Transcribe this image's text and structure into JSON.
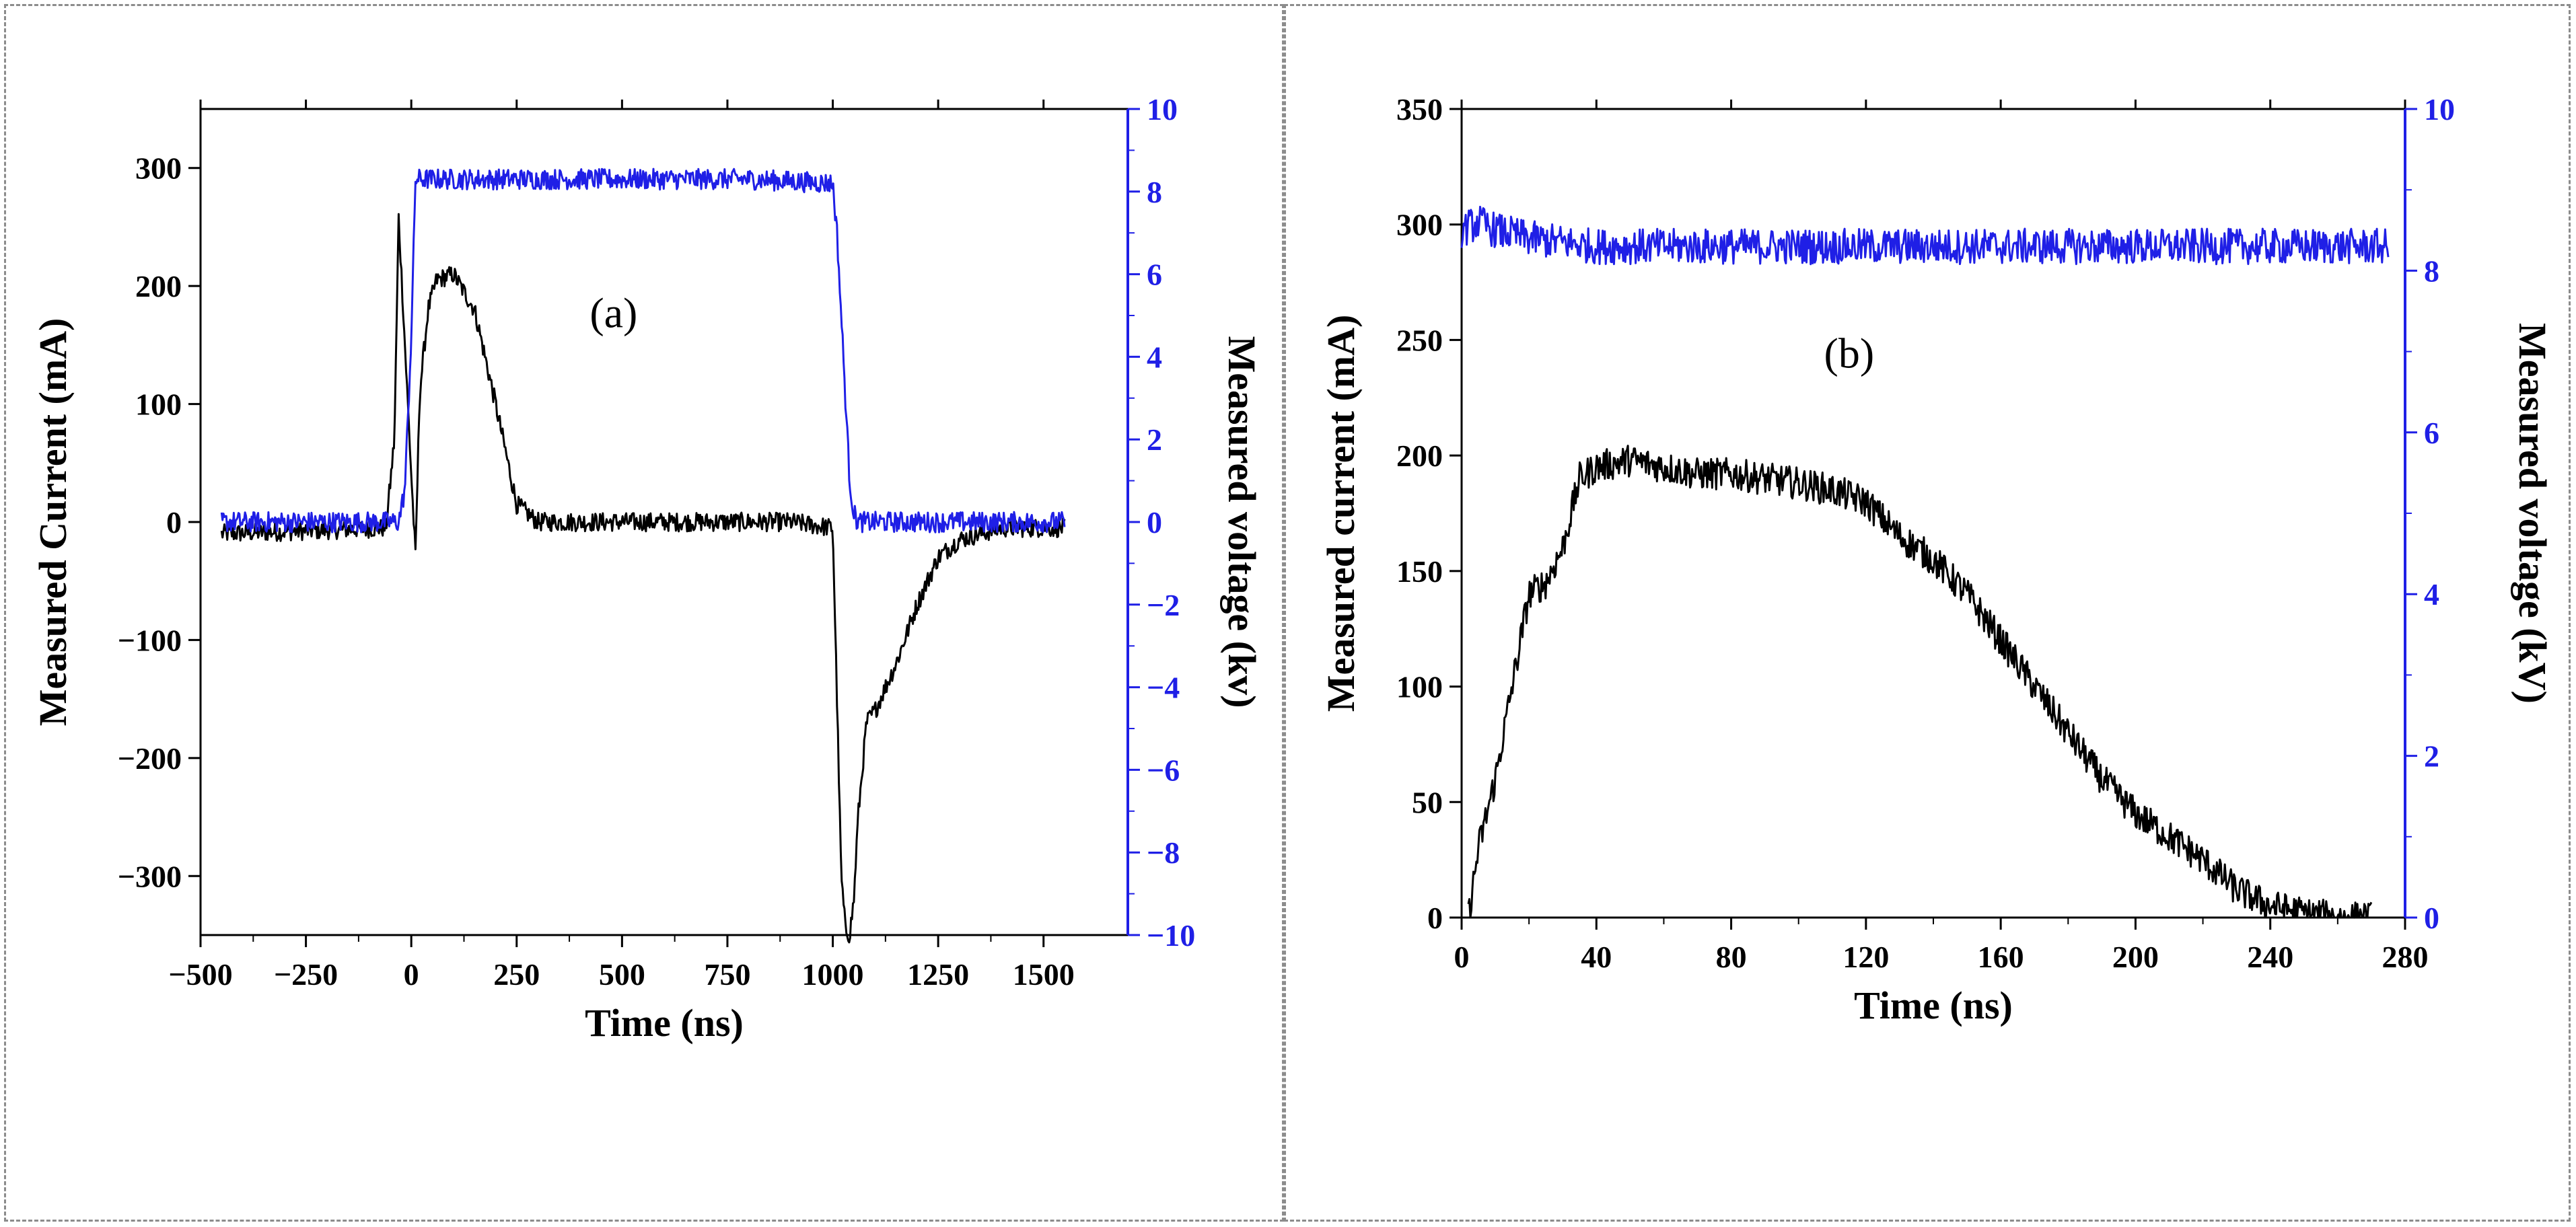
{
  "chart_data": [
    {
      "type": "line",
      "panel_label": "(a)",
      "xlabel": "Time (ns)",
      "ylabel": "Measured Current (mA)",
      "y2label": "Measured voltage (kv)",
      "xlim": [
        -500,
        1700
      ],
      "ylim": [
        -350,
        350
      ],
      "y2lim": [
        -10,
        10
      ],
      "xticks": [
        -500,
        -250,
        0,
        250,
        500,
        750,
        1000,
        1250,
        1500
      ],
      "xtick_labels": [
        "−500",
        "−250",
        "0",
        "250",
        "500",
        "750",
        "1000",
        "1250",
        "1500"
      ],
      "yticks": [
        -300,
        -200,
        -100,
        0,
        100,
        200,
        300
      ],
      "ytick_labels": [
        "−300",
        "−200",
        "−100",
        "0",
        "100",
        "200",
        "300"
      ],
      "y2ticks": [
        -10,
        -8,
        -6,
        -4,
        -2,
        0,
        2,
        4,
        6,
        8,
        10
      ],
      "y2tick_labels": [
        "−10",
        "−8",
        "−6",
        "−4",
        "−2",
        "0",
        "2",
        "4",
        "6",
        "8",
        "10"
      ],
      "series": [
        {
          "name": "Measured current",
          "axis": "left",
          "color": "#000000",
          "x": [
            -450,
            -60,
            -40,
            -30,
            -15,
            0,
            10,
            20,
            40,
            60,
            100,
            150,
            200,
            250,
            300,
            500,
            700,
            900,
            1000,
            1010,
            1020,
            1030,
            1040,
            1050,
            1060,
            1080,
            1100,
            1150,
            1200,
            1250,
            1300,
            1400,
            1550
          ],
          "y": [
            -10,
            -5,
            70,
            258,
            150,
            40,
            -30,
            110,
            180,
            205,
            210,
            180,
            100,
            15,
            0,
            0,
            0,
            0,
            -5,
            -150,
            -300,
            -345,
            -350,
            -320,
            -250,
            -170,
            -160,
            -120,
            -70,
            -30,
            -15,
            -5,
            -5
          ]
        },
        {
          "name": "Measured voltage",
          "axis": "right",
          "color": "#1f1fe6",
          "x": [
            -450,
            -30,
            -15,
            0,
            10,
            20,
            50,
            400,
            800,
            1000,
            1010,
            1020,
            1030,
            1040,
            1050,
            1060,
            1100,
            1550
          ],
          "y": [
            0,
            0,
            0.8,
            4.5,
            8.3,
            8.3,
            8.3,
            8.3,
            8.3,
            8.2,
            7.0,
            5.0,
            3.0,
            1.0,
            0.2,
            0,
            0,
            0
          ]
        }
      ]
    },
    {
      "type": "line",
      "panel_label": "(b)",
      "xlabel": "Time (ns)",
      "ylabel": "Measured current (mA)",
      "y2label": "Measured voltage (kV)",
      "xlim": [
        0,
        280
      ],
      "ylim": [
        0,
        350
      ],
      "y2lim": [
        0,
        10
      ],
      "xticks": [
        0,
        40,
        80,
        120,
        160,
        200,
        240,
        280
      ],
      "xtick_labels": [
        "0",
        "40",
        "80",
        "120",
        "160",
        "200",
        "240",
        "280"
      ],
      "yticks": [
        0,
        50,
        100,
        150,
        200,
        250,
        300,
        350
      ],
      "ytick_labels": [
        "0",
        "50",
        "100",
        "150",
        "200",
        "250",
        "300",
        "350"
      ],
      "y2ticks": [
        0,
        2,
        4,
        6,
        8,
        10
      ],
      "y2tick_labels": [
        "0",
        "2",
        "4",
        "6",
        "8",
        "10"
      ],
      "series": [
        {
          "name": "Measured current",
          "axis": "left",
          "color": "#000000",
          "x": [
            2,
            5,
            10,
            15,
            20,
            25,
            30,
            35,
            40,
            50,
            60,
            70,
            80,
            90,
            100,
            110,
            120,
            130,
            140,
            150,
            160,
            170,
            180,
            190,
            200,
            210,
            220,
            230,
            240,
            250,
            260,
            270
          ],
          "y": [
            0,
            30,
            60,
            100,
            140,
            145,
            160,
            190,
            195,
            198,
            195,
            192,
            192,
            190,
            188,
            185,
            180,
            165,
            155,
            140,
            120,
            100,
            80,
            60,
            45,
            35,
            25,
            12,
            5,
            2,
            0,
            0
          ]
        },
        {
          "name": "Measured voltage",
          "axis": "right",
          "color": "#1f1fe6",
          "x": [
            0,
            5,
            10,
            20,
            30,
            40,
            80,
            120,
            160,
            200,
            240,
            275
          ],
          "y": [
            8.5,
            8.6,
            8.5,
            8.4,
            8.35,
            8.3,
            8.3,
            8.3,
            8.3,
            8.3,
            8.3,
            8.3
          ]
        }
      ]
    }
  ]
}
